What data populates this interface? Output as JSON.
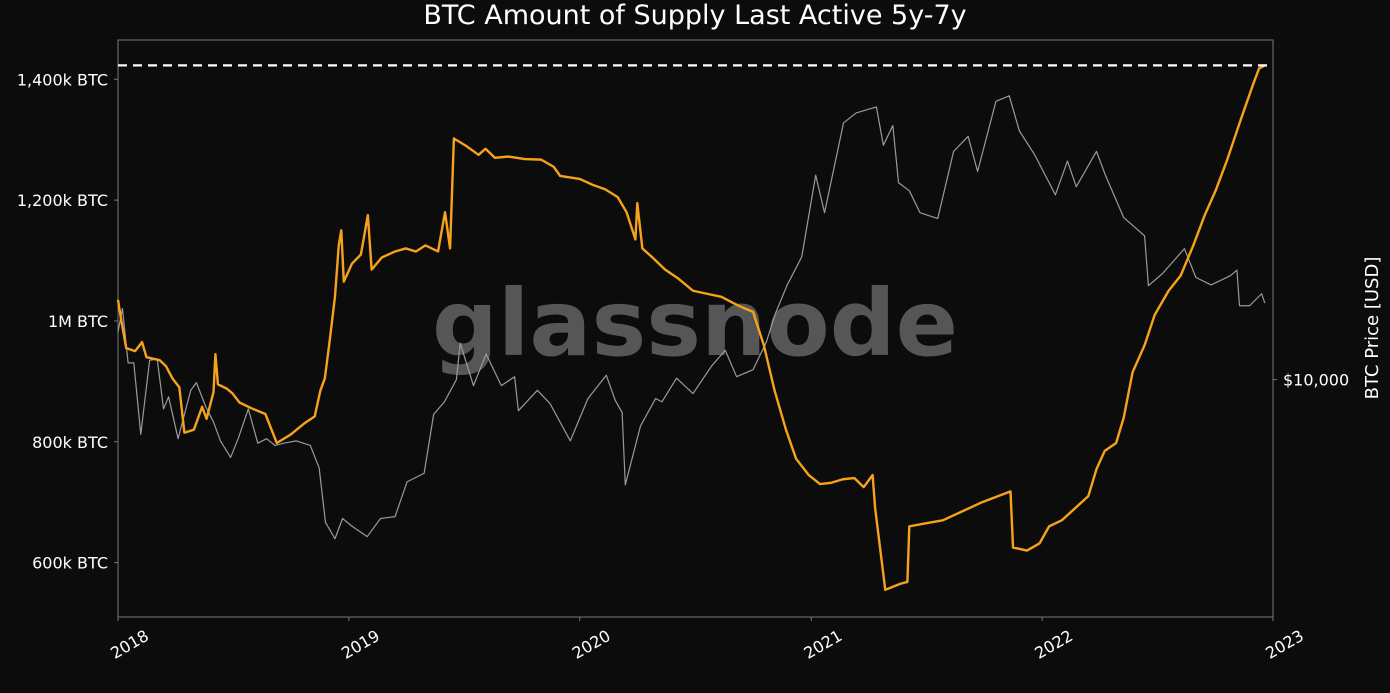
{
  "watermark": "glassnode",
  "chart_data": {
    "type": "line",
    "title": "BTC Amount of Supply Last Active 5y-7y",
    "xlabel": "",
    "ylabel_left": "",
    "ylabel_right": "BTC Price [USD]",
    "x_ticks": [
      "2018",
      "2019",
      "2020",
      "2021",
      "2022",
      "2023"
    ],
    "y_left_ticks": [
      {
        "value": 600000,
        "label": "600k BTC"
      },
      {
        "value": 800000,
        "label": "800k BTC"
      },
      {
        "value": 1000000,
        "label": "1M BTC"
      },
      {
        "value": 1200000,
        "label": "1,200k BTC"
      },
      {
        "value": 1400000,
        "label": "1,400k BTC"
      }
    ],
    "y_right_ticks": [
      {
        "value": 10000,
        "label": "$10,000"
      }
    ],
    "y_left_range": [
      510000,
      1465000
    ],
    "y_right_scale": "log",
    "y_right_range": [
      2000,
      100000
    ],
    "grid": false,
    "reference_line": {
      "value": 1423000,
      "style": "dashed",
      "color": "#ffffff"
    },
    "series": [
      {
        "name": "",
        "axis": "left",
        "color": "#f7a21b",
        "step": true,
        "points": [
          [
            "2018-01-01",
            1035000
          ],
          [
            "2018-01-06",
            1002000
          ],
          [
            "2018-01-14",
            955000
          ],
          [
            "2018-01-28",
            950000
          ],
          [
            "2018-02-08",
            965000
          ],
          [
            "2018-02-15",
            940000
          ],
          [
            "2018-03-08",
            935000
          ],
          [
            "2018-03-18",
            925000
          ],
          [
            "2018-03-28",
            905000
          ],
          [
            "2018-04-08",
            890000
          ],
          [
            "2018-04-16",
            815000
          ],
          [
            "2018-05-01",
            820000
          ],
          [
            "2018-05-14",
            858000
          ],
          [
            "2018-05-21",
            838000
          ],
          [
            "2018-06-01",
            882000
          ],
          [
            "2018-06-04",
            945000
          ],
          [
            "2018-06-08",
            895000
          ],
          [
            "2018-06-22",
            888000
          ],
          [
            "2018-07-01",
            880000
          ],
          [
            "2018-07-12",
            865000
          ],
          [
            "2018-08-01",
            855000
          ],
          [
            "2018-08-22",
            846000
          ],
          [
            "2018-09-09",
            798000
          ],
          [
            "2018-10-01",
            812000
          ],
          [
            "2018-10-22",
            830000
          ],
          [
            "2018-11-08",
            842000
          ],
          [
            "2018-11-17",
            885000
          ],
          [
            "2018-11-24",
            905000
          ],
          [
            "2018-12-02",
            970000
          ],
          [
            "2018-12-10",
            1040000
          ],
          [
            "2018-12-16",
            1125000
          ],
          [
            "2018-12-20",
            1150000
          ],
          [
            "2018-12-24",
            1065000
          ],
          [
            "2019-01-06",
            1095000
          ],
          [
            "2019-01-20",
            1110000
          ],
          [
            "2019-01-31",
            1175000
          ],
          [
            "2019-02-06",
            1085000
          ],
          [
            "2019-02-22",
            1105000
          ],
          [
            "2019-03-15",
            1115000
          ],
          [
            "2019-04-01",
            1120000
          ],
          [
            "2019-04-17",
            1115000
          ],
          [
            "2019-05-02",
            1125000
          ],
          [
            "2019-05-22",
            1115000
          ],
          [
            "2019-06-02",
            1180000
          ],
          [
            "2019-06-10",
            1120000
          ],
          [
            "2019-06-16",
            1302000
          ],
          [
            "2019-07-05",
            1290000
          ],
          [
            "2019-07-25",
            1275000
          ],
          [
            "2019-08-05",
            1285000
          ],
          [
            "2019-08-20",
            1270000
          ],
          [
            "2019-09-10",
            1272000
          ],
          [
            "2019-10-06",
            1268000
          ],
          [
            "2019-11-01",
            1267000
          ],
          [
            "2019-11-21",
            1255000
          ],
          [
            "2019-12-01",
            1240000
          ],
          [
            "2020-01-01",
            1235000
          ],
          [
            "2020-01-22",
            1225000
          ],
          [
            "2020-02-10",
            1218000
          ],
          [
            "2020-03-01",
            1205000
          ],
          [
            "2020-03-15",
            1180000
          ],
          [
            "2020-03-29",
            1135000
          ],
          [
            "2020-04-01",
            1195000
          ],
          [
            "2020-04-09",
            1120000
          ],
          [
            "2020-04-25",
            1105000
          ],
          [
            "2020-05-15",
            1085000
          ],
          [
            "2020-06-05",
            1070000
          ],
          [
            "2020-06-28",
            1050000
          ],
          [
            "2020-07-20",
            1045000
          ],
          [
            "2020-08-12",
            1040000
          ],
          [
            "2020-08-30",
            1030000
          ],
          [
            "2020-09-15",
            1022000
          ],
          [
            "2020-10-01",
            1015000
          ],
          [
            "2020-10-18",
            960000
          ],
          [
            "2020-11-04",
            885000
          ],
          [
            "2020-11-22",
            820000
          ],
          [
            "2020-12-08",
            772000
          ],
          [
            "2020-12-28",
            745000
          ],
          [
            "2021-01-15",
            730000
          ],
          [
            "2021-02-01",
            732000
          ],
          [
            "2021-02-20",
            738000
          ],
          [
            "2021-03-10",
            740000
          ],
          [
            "2021-03-25",
            725000
          ],
          [
            "2021-04-08",
            745000
          ],
          [
            "2021-04-12",
            690000
          ],
          [
            "2021-04-28",
            555000
          ],
          [
            "2021-05-22",
            565000
          ],
          [
            "2021-06-02",
            568000
          ],
          [
            "2021-06-05",
            660000
          ],
          [
            "2021-07-01",
            665000
          ],
          [
            "2021-07-28",
            670000
          ],
          [
            "2021-08-28",
            685000
          ],
          [
            "2021-09-28",
            700000
          ],
          [
            "2021-10-28",
            712000
          ],
          [
            "2021-11-12",
            718000
          ],
          [
            "2021-11-16",
            625000
          ],
          [
            "2021-12-08",
            620000
          ],
          [
            "2021-12-28",
            632000
          ],
          [
            "2022-01-12",
            660000
          ],
          [
            "2022-02-01",
            670000
          ],
          [
            "2022-02-20",
            688000
          ],
          [
            "2022-03-15",
            710000
          ],
          [
            "2022-03-28",
            755000
          ],
          [
            "2022-04-10",
            785000
          ],
          [
            "2022-04-28",
            798000
          ],
          [
            "2022-05-10",
            840000
          ],
          [
            "2022-05-24",
            915000
          ],
          [
            "2022-06-12",
            960000
          ],
          [
            "2022-06-28",
            1010000
          ],
          [
            "2022-07-20",
            1050000
          ],
          [
            "2022-08-08",
            1075000
          ],
          [
            "2022-08-28",
            1125000
          ],
          [
            "2022-09-15",
            1175000
          ],
          [
            "2022-10-02",
            1215000
          ],
          [
            "2022-10-20",
            1265000
          ],
          [
            "2022-11-10",
            1330000
          ],
          [
            "2022-11-30",
            1390000
          ],
          [
            "2022-12-10",
            1418000
          ],
          [
            "2022-12-19",
            1423000
          ]
        ]
      },
      {
        "name": "",
        "axis": "right",
        "color": "#9a9a9a",
        "step": false,
        "points": [
          [
            "2018-01-01",
            13800
          ],
          [
            "2018-01-08",
            16200
          ],
          [
            "2018-01-17",
            11200
          ],
          [
            "2018-01-26",
            11200
          ],
          [
            "2018-02-06",
            6900
          ],
          [
            "2018-02-20",
            11400
          ],
          [
            "2018-03-04",
            11500
          ],
          [
            "2018-03-14",
            8200
          ],
          [
            "2018-03-22",
            8900
          ],
          [
            "2018-04-06",
            6700
          ],
          [
            "2018-04-26",
            9300
          ],
          [
            "2018-05-05",
            9800
          ],
          [
            "2018-05-20",
            8300
          ],
          [
            "2018-06-01",
            7500
          ],
          [
            "2018-06-12",
            6600
          ],
          [
            "2018-06-28",
            5900
          ],
          [
            "2018-07-10",
            6700
          ],
          [
            "2018-07-26",
            8200
          ],
          [
            "2018-08-10",
            6500
          ],
          [
            "2018-08-24",
            6700
          ],
          [
            "2018-09-06",
            6400
          ],
          [
            "2018-09-20",
            6500
          ],
          [
            "2018-10-10",
            6600
          ],
          [
            "2018-11-01",
            6400
          ],
          [
            "2018-11-15",
            5500
          ],
          [
            "2018-11-25",
            3800
          ],
          [
            "2018-12-10",
            3400
          ],
          [
            "2018-12-22",
            3900
          ],
          [
            "2019-01-06",
            3700
          ],
          [
            "2019-01-30",
            3450
          ],
          [
            "2019-02-20",
            3900
          ],
          [
            "2019-03-15",
            3950
          ],
          [
            "2019-04-03",
            5000
          ],
          [
            "2019-04-30",
            5300
          ],
          [
            "2019-05-15",
            7900
          ],
          [
            "2019-06-01",
            8600
          ],
          [
            "2019-06-20",
            10000
          ],
          [
            "2019-06-26",
            12800
          ],
          [
            "2019-07-17",
            9600
          ],
          [
            "2019-08-06",
            11900
          ],
          [
            "2019-08-30",
            9600
          ],
          [
            "2019-09-20",
            10200
          ],
          [
            "2019-09-26",
            8100
          ],
          [
            "2019-10-26",
            9300
          ],
          [
            "2019-11-15",
            8500
          ],
          [
            "2019-12-17",
            6600
          ],
          [
            "2020-01-14",
            8800
          ],
          [
            "2020-02-12",
            10300
          ],
          [
            "2020-02-26",
            8700
          ],
          [
            "2020-03-08",
            8000
          ],
          [
            "2020-03-13",
            4900
          ],
          [
            "2020-04-06",
            7300
          ],
          [
            "2020-04-30",
            8800
          ],
          [
            "2020-05-10",
            8600
          ],
          [
            "2020-06-02",
            10100
          ],
          [
            "2020-06-28",
            9100
          ],
          [
            "2020-07-28",
            11000
          ],
          [
            "2020-08-18",
            12200
          ],
          [
            "2020-09-05",
            10200
          ],
          [
            "2020-10-01",
            10700
          ],
          [
            "2020-10-22",
            12900
          ],
          [
            "2020-11-05",
            15600
          ],
          [
            "2020-11-24",
            19000
          ],
          [
            "2020-12-17",
            23000
          ],
          [
            "2021-01-08",
            40000
          ],
          [
            "2021-01-22",
            31000
          ],
          [
            "2021-02-21",
            57000
          ],
          [
            "2021-03-13",
            61000
          ],
          [
            "2021-04-14",
            63500
          ],
          [
            "2021-04-25",
            49000
          ],
          [
            "2021-05-10",
            56000
          ],
          [
            "2021-05-19",
            38000
          ],
          [
            "2021-06-05",
            36000
          ],
          [
            "2021-06-22",
            31000
          ],
          [
            "2021-07-20",
            29800
          ],
          [
            "2021-08-14",
            47000
          ],
          [
            "2021-09-06",
            52000
          ],
          [
            "2021-09-21",
            41000
          ],
          [
            "2021-10-20",
            66000
          ],
          [
            "2021-11-10",
            68500
          ],
          [
            "2021-11-26",
            54000
          ],
          [
            "2021-12-20",
            46000
          ],
          [
            "2022-01-22",
            35000
          ],
          [
            "2022-02-10",
            44000
          ],
          [
            "2022-02-24",
            37000
          ],
          [
            "2022-03-28",
            47000
          ],
          [
            "2022-04-11",
            40000
          ],
          [
            "2022-05-10",
            30000
          ],
          [
            "2022-06-12",
            26500
          ],
          [
            "2022-06-18",
            18900
          ],
          [
            "2022-07-10",
            20500
          ],
          [
            "2022-08-14",
            24300
          ],
          [
            "2022-09-01",
            20000
          ],
          [
            "2022-09-25",
            19000
          ],
          [
            "2022-10-25",
            20200
          ],
          [
            "2022-11-05",
            21000
          ],
          [
            "2022-11-09",
            16500
          ],
          [
            "2022-11-25",
            16500
          ],
          [
            "2022-12-14",
            17900
          ],
          [
            "2022-12-19",
            16800
          ]
        ]
      }
    ]
  }
}
